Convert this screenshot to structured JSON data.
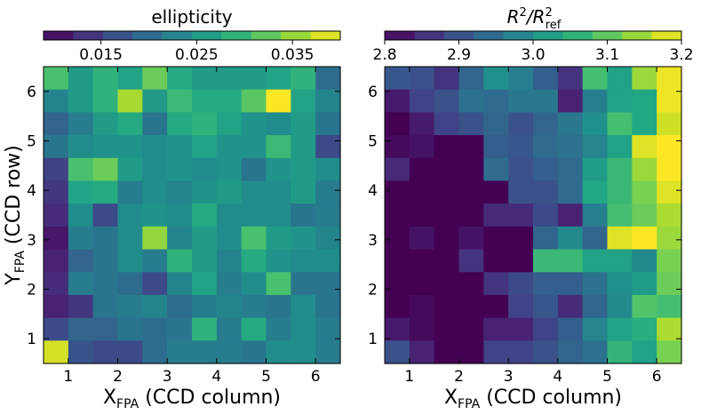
{
  "chart_data": [
    {
      "type": "heatmap",
      "id": "left",
      "title": "ellipticity",
      "xlabel": "X",
      "xlabel_sub": "FPA",
      "xlabel_rest": " (CCD column)",
      "ylabel": "Y",
      "ylabel_sub": "FPA",
      "ylabel_rest": " (CCD row)",
      "x_range": [
        0.5,
        6.5
      ],
      "y_range": [
        0.5,
        6.5
      ],
      "x_ticks": [
        1,
        2,
        3,
        4,
        5,
        6
      ],
      "y_ticks": [
        1,
        2,
        3,
        4,
        5,
        6
      ],
      "colorbar": {
        "vmin": 0.009,
        "vmax": 0.04,
        "ticks": [
          0.015,
          0.025,
          0.035
        ],
        "tick_labels": [
          "0.015",
          "0.025",
          "0.035"
        ]
      },
      "grid_rows_top_to_bottom": [
        [
          0.031,
          0.026,
          0.029,
          0.027,
          0.033,
          0.028,
          0.026,
          0.026,
          0.026,
          0.027,
          0.029,
          0.02
        ],
        [
          0.023,
          0.026,
          0.029,
          0.036,
          0.026,
          0.03,
          0.028,
          0.028,
          0.032,
          0.04,
          0.027,
          0.023
        ],
        [
          0.019,
          0.022,
          0.026,
          0.028,
          0.021,
          0.028,
          0.029,
          0.027,
          0.025,
          0.024,
          0.026,
          0.021
        ],
        [
          0.021,
          0.024,
          0.025,
          0.025,
          0.024,
          0.025,
          0.027,
          0.025,
          0.025,
          0.03,
          0.026,
          0.016
        ],
        [
          0.015,
          0.031,
          0.033,
          0.026,
          0.024,
          0.025,
          0.024,
          0.025,
          0.021,
          0.025,
          0.026,
          0.024
        ],
        [
          0.014,
          0.027,
          0.028,
          0.022,
          0.024,
          0.023,
          0.025,
          0.026,
          0.024,
          0.024,
          0.026,
          0.022
        ],
        [
          0.013,
          0.024,
          0.016,
          0.024,
          0.025,
          0.024,
          0.028,
          0.024,
          0.024,
          0.024,
          0.021,
          0.022
        ],
        [
          0.011,
          0.022,
          0.021,
          0.024,
          0.035,
          0.023,
          0.026,
          0.024,
          0.031,
          0.026,
          0.025,
          0.023
        ],
        [
          0.012,
          0.019,
          0.021,
          0.024,
          0.022,
          0.029,
          0.026,
          0.023,
          0.028,
          0.025,
          0.024,
          0.024
        ],
        [
          0.013,
          0.022,
          0.021,
          0.02,
          0.016,
          0.023,
          0.027,
          0.022,
          0.024,
          0.031,
          0.021,
          0.021
        ],
        [
          0.012,
          0.014,
          0.021,
          0.022,
          0.023,
          0.02,
          0.022,
          0.023,
          0.022,
          0.021,
          0.024,
          0.021
        ],
        [
          0.016,
          0.019,
          0.019,
          0.021,
          0.02,
          0.021,
          0.029,
          0.022,
          0.028,
          0.022,
          0.024,
          0.022
        ],
        [
          0.038,
          0.017,
          0.016,
          0.016,
          0.02,
          0.022,
          0.022,
          0.022,
          0.021,
          0.024,
          0.024,
          0.022
        ]
      ]
    },
    {
      "type": "heatmap",
      "id": "right",
      "title": "R²/R²ref",
      "title_main": "R",
      "title_sup1": "2",
      "title_slash": "/R",
      "title_sup2": "2",
      "title_sub": "ref",
      "xlabel": "X",
      "xlabel_sub": "FPA",
      "xlabel_rest": " (CCD column)",
      "x_range": [
        0.5,
        6.5
      ],
      "y_range": [
        0.5,
        6.5
      ],
      "x_ticks": [
        1,
        2,
        3,
        4,
        5,
        6
      ],
      "y_ticks": [
        1,
        2,
        3,
        4,
        5,
        6
      ],
      "colorbar": {
        "vmin": 2.8,
        "vmax": 3.2,
        "ticks": [
          2.8,
          2.9,
          3.0,
          3.1,
          3.2
        ],
        "tick_labels": [
          "2.8",
          "2.9",
          "3.0",
          "3.1",
          "3.2"
        ]
      },
      "grid_rows_top_to_bottom": [
        [
          2.91,
          2.9,
          2.86,
          2.93,
          3.0,
          2.97,
          2.92,
          2.86,
          3.08,
          3.03,
          3.14,
          3.19
        ],
        [
          2.83,
          2.88,
          2.9,
          2.95,
          2.94,
          2.96,
          2.96,
          2.84,
          2.97,
          3.03,
          3.04,
          3.19
        ],
        [
          2.8,
          2.83,
          2.88,
          2.9,
          2.93,
          2.9,
          2.93,
          2.96,
          3.0,
          3.08,
          3.04,
          3.17
        ],
        [
          2.81,
          2.82,
          2.8,
          2.8,
          2.92,
          2.91,
          2.94,
          2.95,
          2.98,
          3.03,
          3.18,
          3.2
        ],
        [
          2.85,
          2.8,
          2.8,
          2.8,
          2.94,
          2.9,
          2.92,
          2.94,
          3.02,
          3.07,
          3.14,
          3.2
        ],
        [
          2.8,
          2.8,
          2.8,
          2.8,
          2.8,
          2.9,
          2.9,
          2.94,
          3.04,
          3.07,
          3.12,
          3.18
        ],
        [
          2.8,
          2.8,
          2.8,
          2.8,
          2.85,
          2.85,
          2.89,
          2.84,
          2.97,
          3.08,
          3.11,
          3.15
        ],
        [
          2.8,
          2.82,
          2.8,
          2.82,
          2.8,
          2.8,
          2.93,
          2.99,
          2.93,
          3.18,
          3.2,
          3.14
        ],
        [
          2.8,
          2.8,
          2.8,
          2.86,
          2.8,
          2.8,
          3.07,
          3.07,
          3.03,
          3.03,
          2.99,
          3.12
        ],
        [
          2.8,
          2.8,
          2.8,
          2.8,
          2.86,
          2.89,
          2.92,
          2.92,
          2.95,
          3.0,
          3.02,
          3.11
        ],
        [
          2.8,
          2.81,
          2.8,
          2.8,
          2.8,
          2.88,
          2.91,
          2.85,
          2.93,
          2.99,
          3.09,
          3.08
        ],
        [
          2.83,
          2.81,
          2.8,
          2.8,
          2.84,
          2.84,
          2.88,
          2.92,
          2.98,
          3.03,
          3.05,
          3.15
        ],
        [
          2.9,
          2.84,
          2.8,
          2.8,
          2.88,
          2.88,
          2.9,
          2.93,
          2.95,
          3.06,
          3.03,
          3.12
        ]
      ]
    }
  ]
}
